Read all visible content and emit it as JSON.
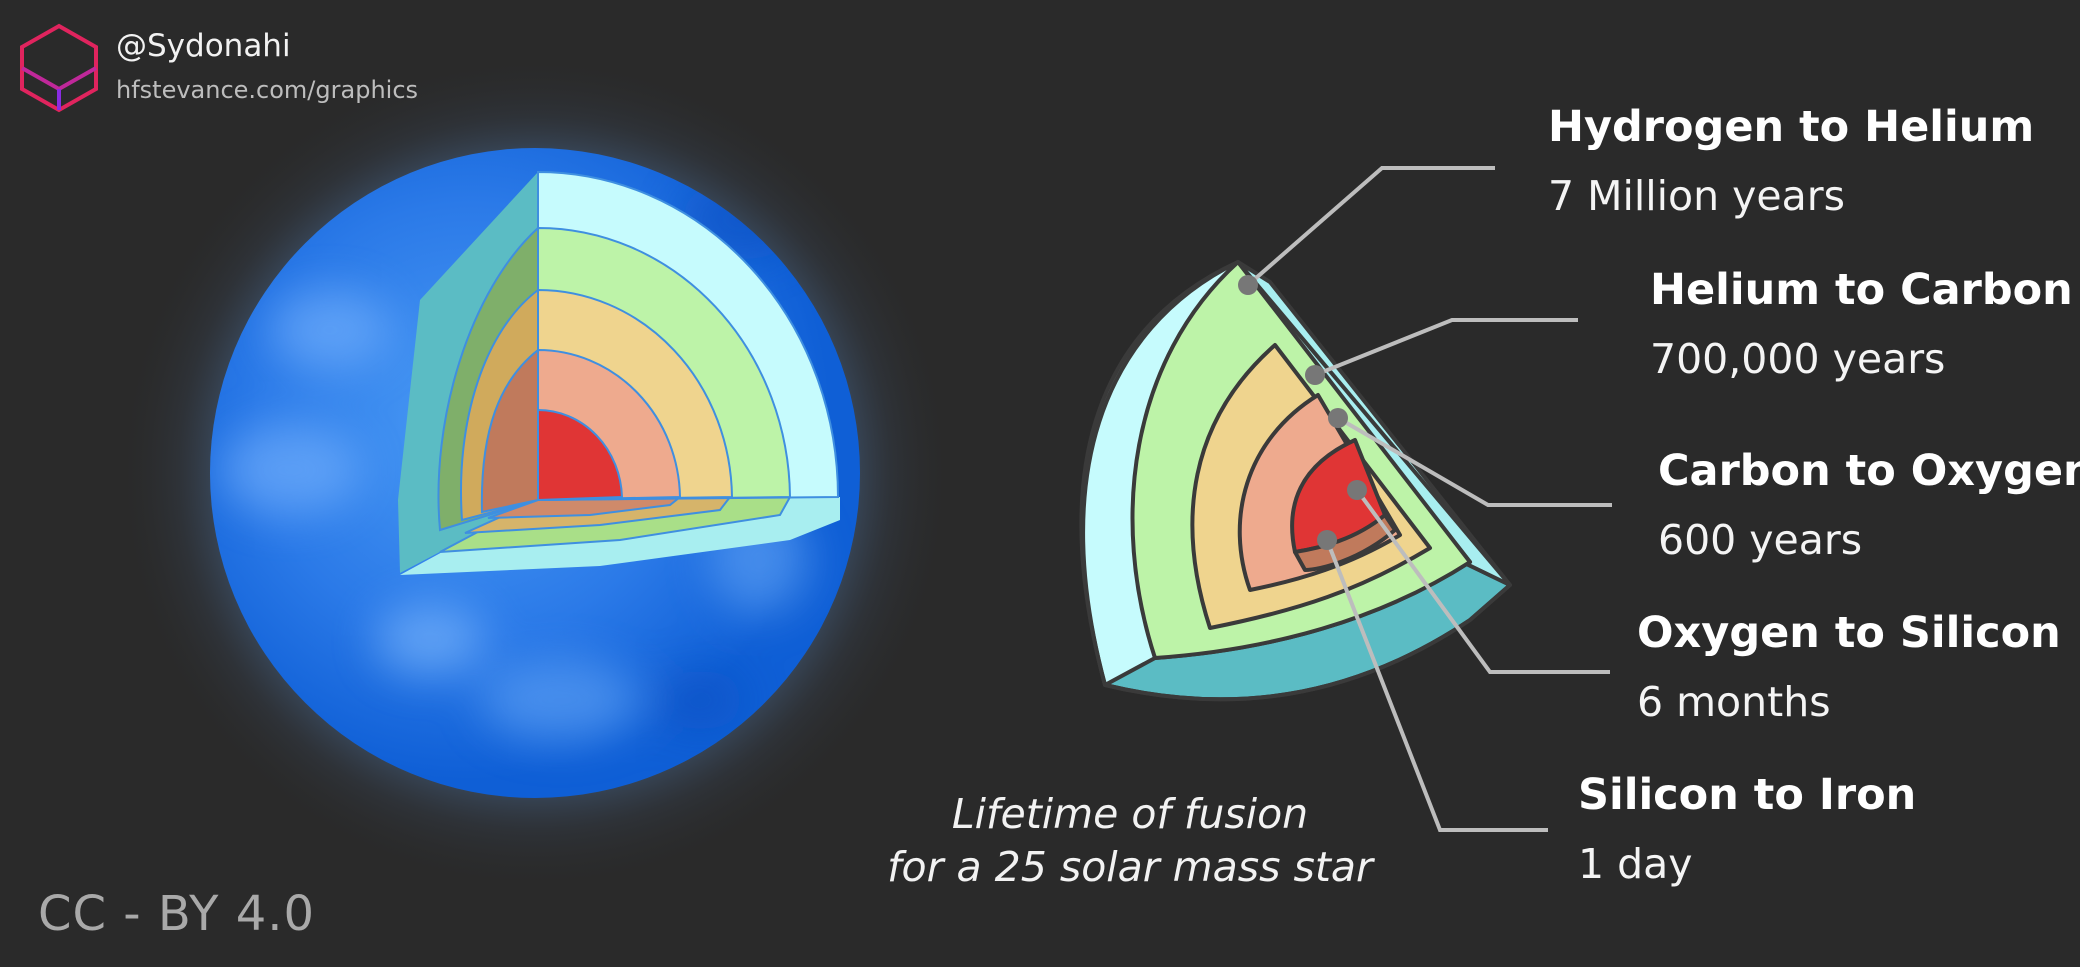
{
  "credit": {
    "handle": "@Sydonahi",
    "website": "hfstevance.com/graphics",
    "license": "CC - BY 4.0",
    "logo_colors": [
      "#e0245e",
      "#8a2be2"
    ]
  },
  "caption": {
    "line1": "Lifetime of fusion",
    "line2": "for a 25 solar mass star"
  },
  "stages": [
    {
      "name": "Hydrogen to Helium",
      "duration": "7 Million years",
      "color": "#c6fbfd"
    },
    {
      "name": "Helium to Carbon",
      "duration": "700,000 years",
      "color": "#bdf3a8"
    },
    {
      "name": "Carbon to Oxygen",
      "duration": "600 years",
      "color": "#efd48e"
    },
    {
      "name": "Oxygen to Silicon",
      "duration": "6 months",
      "color": "#eeaa8e"
    },
    {
      "name": "Silicon to Iron",
      "duration": "1 day",
      "color": "#e03535"
    }
  ],
  "colors": {
    "background": "#2a2a2a",
    "star_blue": "#1a6fe0",
    "leader_line": "#bdbdbd",
    "outline": "#3a3a3a"
  }
}
